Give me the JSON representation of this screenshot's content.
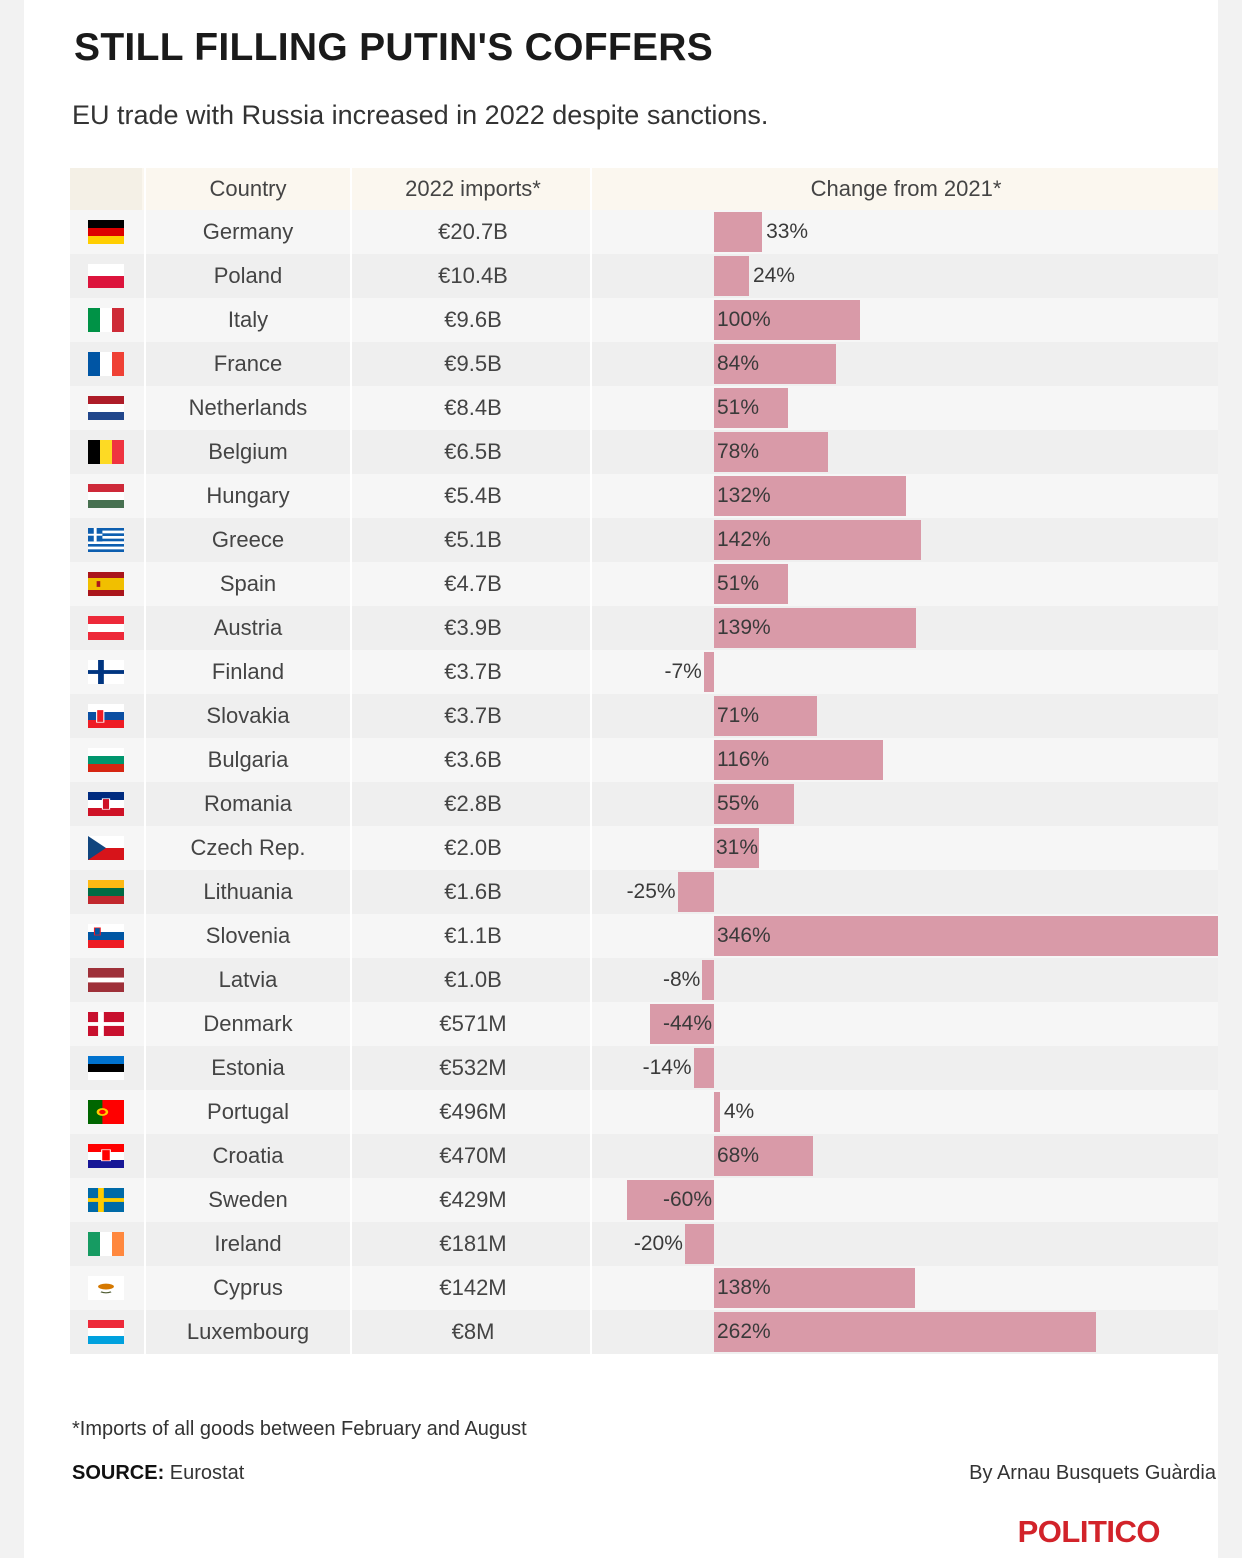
{
  "title": "STILL FILLING PUTIN'S COFFERS",
  "subtitle": "EU trade with Russia increased in 2022 despite sanctions.",
  "headers": {
    "country": "Country",
    "imports": "2022 imports*",
    "change": "Change from 2021*"
  },
  "footnote": "*Imports of all goods between February and August",
  "source_label": "SOURCE:",
  "source_value": "Eurostat",
  "byline": "By Arnau Busquets Guàrdia",
  "logo": "POLITICO",
  "bar_color": "#d99aa8",
  "chart_data": {
    "type": "table",
    "columns": [
      "Country",
      "2022 imports*",
      "Change from 2021*"
    ],
    "rows": [
      {
        "country": "Germany",
        "imports": "€20.7B",
        "change": 33,
        "label": "33%",
        "flag": "germany-flag-icon"
      },
      {
        "country": "Poland",
        "imports": "€10.4B",
        "change": 24,
        "label": "24%",
        "flag": "poland-flag-icon"
      },
      {
        "country": "Italy",
        "imports": "€9.6B",
        "change": 100,
        "label": "100%",
        "flag": "italy-flag-icon"
      },
      {
        "country": "France",
        "imports": "€9.5B",
        "change": 84,
        "label": "84%",
        "flag": "france-flag-icon"
      },
      {
        "country": "Netherlands",
        "imports": "€8.4B",
        "change": 51,
        "label": "51%",
        "flag": "netherlands-flag-icon"
      },
      {
        "country": "Belgium",
        "imports": "€6.5B",
        "change": 78,
        "label": "78%",
        "flag": "belgium-flag-icon"
      },
      {
        "country": "Hungary",
        "imports": "€5.4B",
        "change": 132,
        "label": "132%",
        "flag": "hungary-flag-icon"
      },
      {
        "country": "Greece",
        "imports": "€5.1B",
        "change": 142,
        "label": "142%",
        "flag": "greece-flag-icon"
      },
      {
        "country": "Spain",
        "imports": "€4.7B",
        "change": 51,
        "label": "51%",
        "flag": "spain-flag-icon"
      },
      {
        "country": "Austria",
        "imports": "€3.9B",
        "change": 139,
        "label": "139%",
        "flag": "austria-flag-icon"
      },
      {
        "country": "Finland",
        "imports": "€3.7B",
        "change": -7,
        "label": "-7%",
        "flag": "finland-flag-icon"
      },
      {
        "country": "Slovakia",
        "imports": "€3.7B",
        "change": 71,
        "label": "71%",
        "flag": "slovakia-flag-icon"
      },
      {
        "country": "Bulgaria",
        "imports": "€3.6B",
        "change": 116,
        "label": "116%",
        "flag": "bulgaria-flag-icon"
      },
      {
        "country": "Romania",
        "imports": "€2.8B",
        "change": 55,
        "label": "55%",
        "flag": "romania-flag-icon"
      },
      {
        "country": "Czech Rep.",
        "imports": "€2.0B",
        "change": 31,
        "label": "31%",
        "flag": "czech-flag-icon"
      },
      {
        "country": "Lithuania",
        "imports": "€1.6B",
        "change": -25,
        "label": "-25%",
        "flag": "lithuania-flag-icon"
      },
      {
        "country": "Slovenia",
        "imports": "€1.1B",
        "change": 346,
        "label": "346%",
        "flag": "slovenia-flag-icon"
      },
      {
        "country": "Latvia",
        "imports": "€1.0B",
        "change": -8,
        "label": "-8%",
        "flag": "latvia-flag-icon"
      },
      {
        "country": "Denmark",
        "imports": "€571M",
        "change": -44,
        "label": "-44%",
        "flag": "denmark-flag-icon"
      },
      {
        "country": "Estonia",
        "imports": "€532M",
        "change": -14,
        "label": "-14%",
        "flag": "estonia-flag-icon"
      },
      {
        "country": "Portugal",
        "imports": "€496M",
        "change": 4,
        "label": "4%",
        "flag": "portugal-flag-icon"
      },
      {
        "country": "Croatia",
        "imports": "€470M",
        "change": 68,
        "label": "68%",
        "flag": "croatia-flag-icon"
      },
      {
        "country": "Sweden",
        "imports": "€429M",
        "change": -60,
        "label": "-60%",
        "flag": "sweden-flag-icon"
      },
      {
        "country": "Ireland",
        "imports": "€181M",
        "change": -20,
        "label": "-20%",
        "flag": "ireland-flag-icon"
      },
      {
        "country": "Cyprus",
        "imports": "€142M",
        "change": 138,
        "label": "138%",
        "flag": "cyprus-flag-icon"
      },
      {
        "country": "Luxembourg",
        "imports": "€8M",
        "change": 262,
        "label": "262%",
        "flag": "luxembourg-flag-icon"
      }
    ]
  }
}
